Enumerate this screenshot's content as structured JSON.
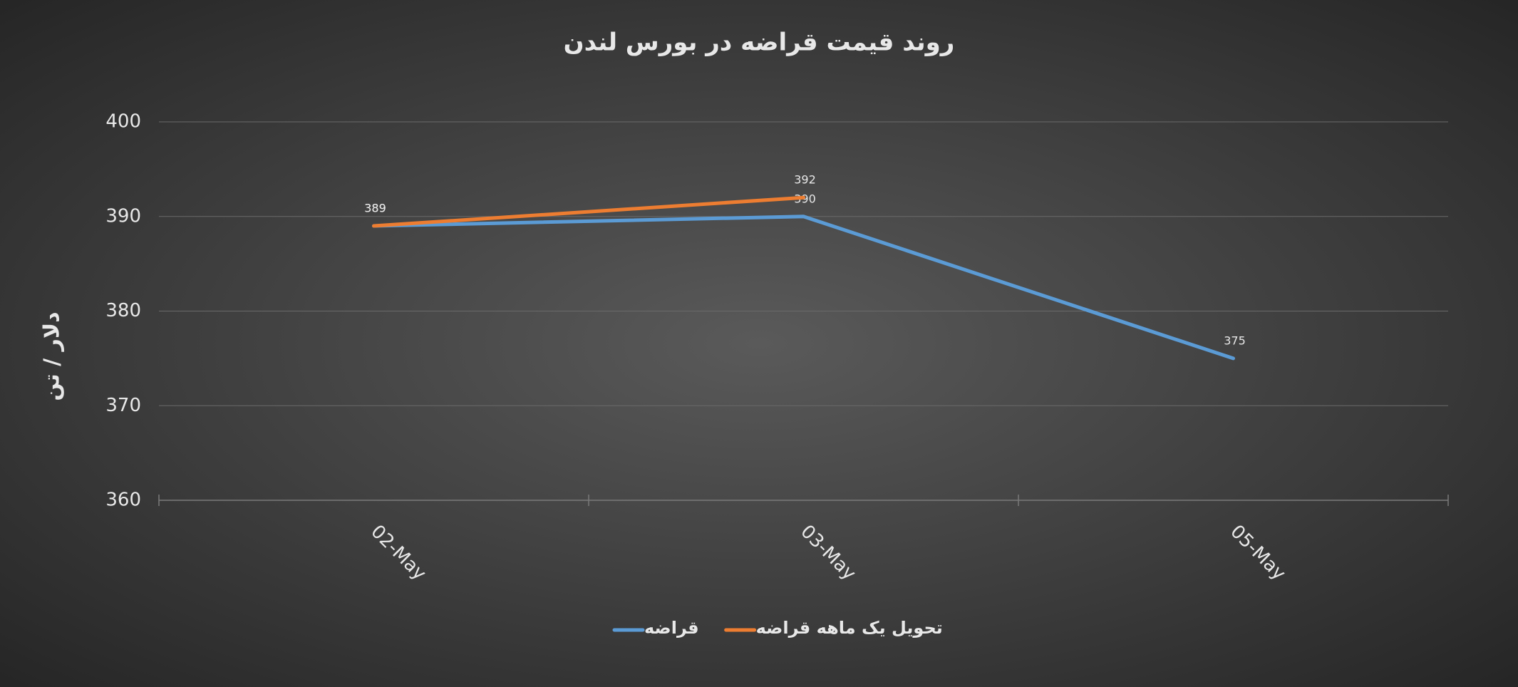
{
  "chart_data": {
    "type": "line",
    "title": "روند قیمت قراضه در بورس لندن",
    "y_label": "دلار / تن",
    "categories": [
      "02-May",
      "03-May",
      "05-May"
    ],
    "series": [
      {
        "name": "قراضه",
        "color": "#5b9bd5",
        "values": [
          389,
          390,
          375
        ]
      },
      {
        "name": "تحویل یک ماهه قراضه",
        "color": "#ed7d31",
        "values": [
          389,
          392,
          null
        ]
      }
    ],
    "ylim": [
      360,
      400
    ],
    "yticks": [
      360,
      370,
      380,
      390,
      400
    ],
    "grid": true
  }
}
